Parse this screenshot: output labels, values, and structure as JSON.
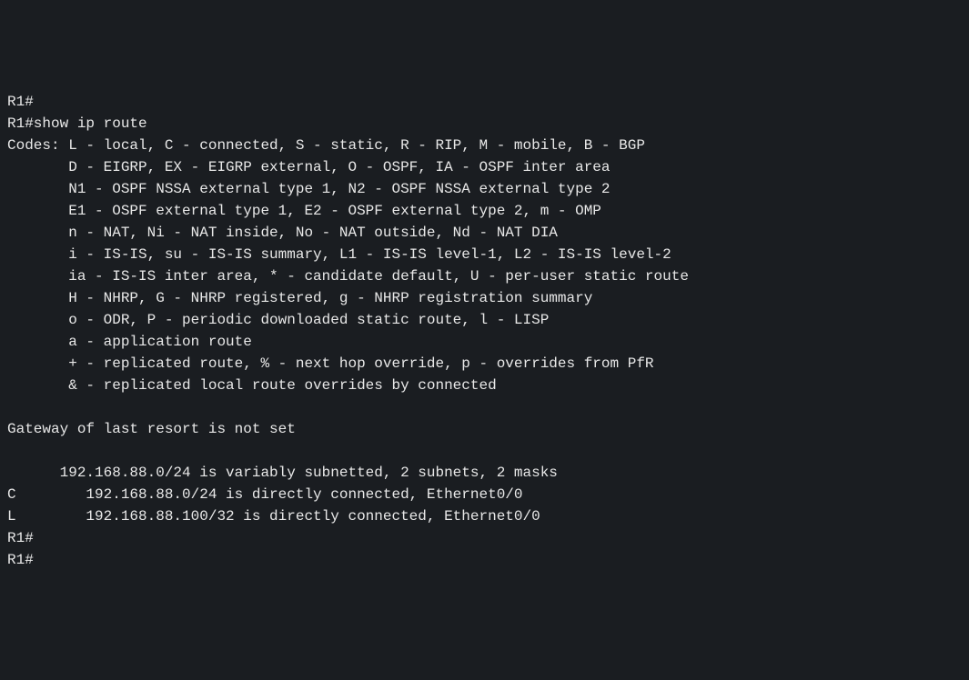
{
  "terminal": {
    "background_color": "#1a1d21",
    "text_color": "#e8e8e8",
    "font_family": "Menlo, Monaco, Consolas, Courier New, monospace",
    "font_size": 16,
    "lines": [
      "R1#",
      "R1#show ip route",
      "Codes: L - local, C - connected, S - static, R - RIP, M - mobile, B - BGP",
      "       D - EIGRP, EX - EIGRP external, O - OSPF, IA - OSPF inter area",
      "       N1 - OSPF NSSA external type 1, N2 - OSPF NSSA external type 2",
      "       E1 - OSPF external type 1, E2 - OSPF external type 2, m - OMP",
      "       n - NAT, Ni - NAT inside, No - NAT outside, Nd - NAT DIA",
      "       i - IS-IS, su - IS-IS summary, L1 - IS-IS level-1, L2 - IS-IS level-2",
      "       ia - IS-IS inter area, * - candidate default, U - per-user static route",
      "       H - NHRP, G - NHRP registered, g - NHRP registration summary",
      "       o - ODR, P - periodic downloaded static route, l - LISP",
      "       a - application route",
      "       + - replicated route, % - next hop override, p - overrides from PfR",
      "       & - replicated local route overrides by connected",
      "",
      "Gateway of last resort is not set",
      "",
      "      192.168.88.0/24 is variably subnetted, 2 subnets, 2 masks",
      "C        192.168.88.0/24 is directly connected, Ethernet0/0",
      "L        192.168.88.100/32 is directly connected, Ethernet0/0",
      "R1#",
      "R1#"
    ]
  }
}
